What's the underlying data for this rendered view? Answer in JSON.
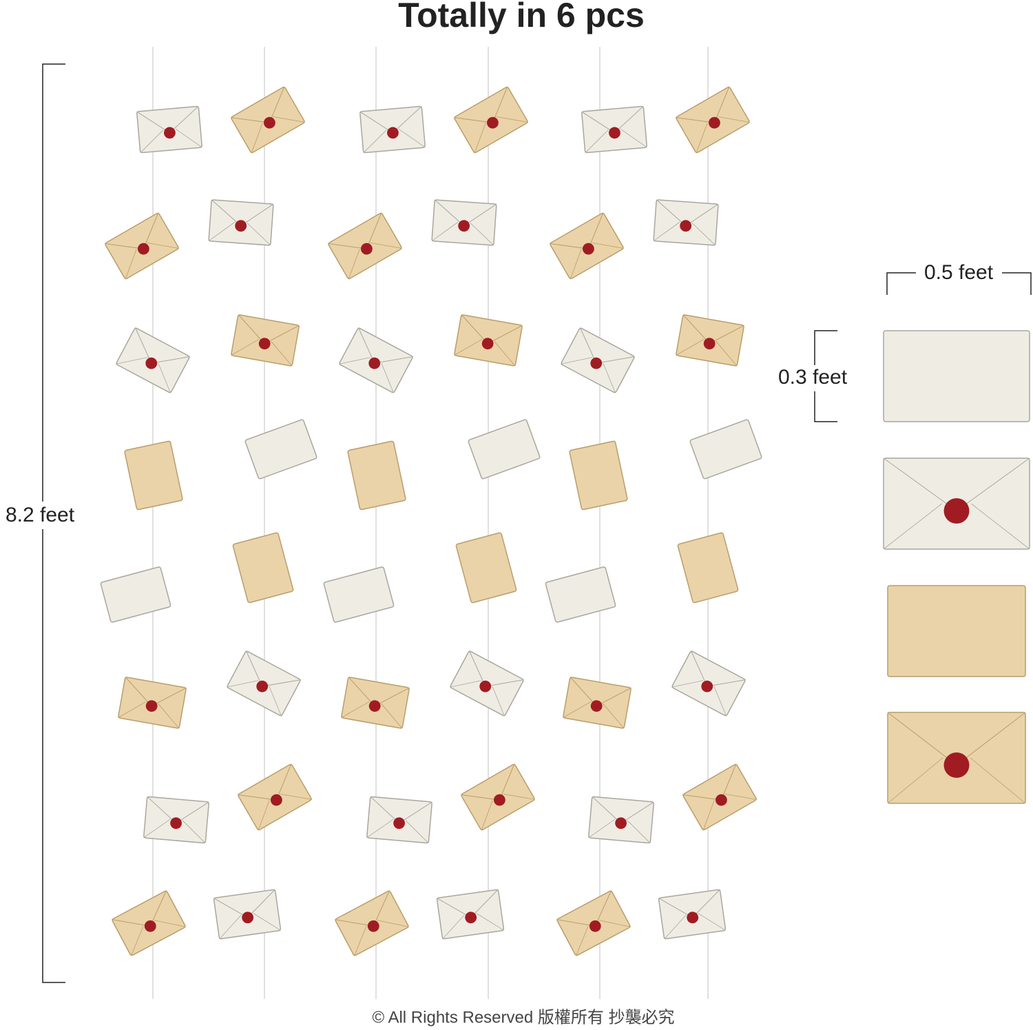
{
  "header": {
    "title": "Totally in 6 pcs"
  },
  "dimensions": {
    "length": "8.2 feet",
    "width": "0.5 feet",
    "height": "0.3 feet"
  },
  "footer": {
    "copyright": "© All Rights Reserved 版權所有 抄襲必究"
  }
}
